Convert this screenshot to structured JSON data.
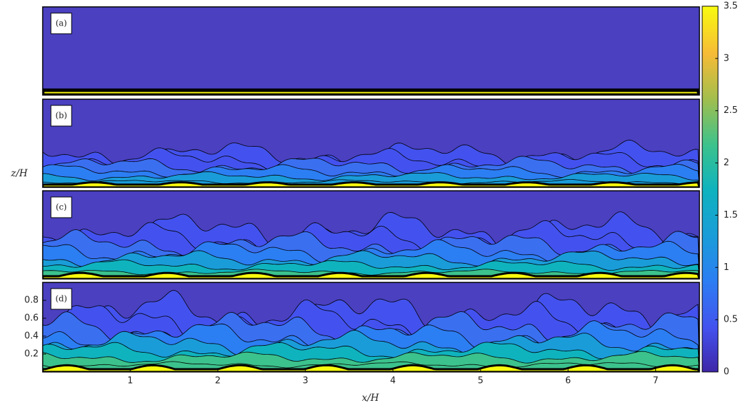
{
  "chart_data": {
    "type": "contour",
    "panels": [
      "(a)",
      "(b)",
      "(c)",
      "(d)"
    ],
    "xlabel": "x/H",
    "ylabel": "z/H",
    "xlim": [
      0,
      7.5
    ],
    "xticks": [
      1,
      2,
      3,
      4,
      5,
      6,
      7
    ],
    "ylim": [
      0,
      1
    ],
    "yticks": [
      0.2,
      0.4,
      0.6,
      0.8
    ],
    "clim": [
      0,
      3.5
    ],
    "cticks": [
      0,
      0.5,
      1,
      1.5,
      2,
      2.5,
      3,
      3.5
    ]
  }
}
